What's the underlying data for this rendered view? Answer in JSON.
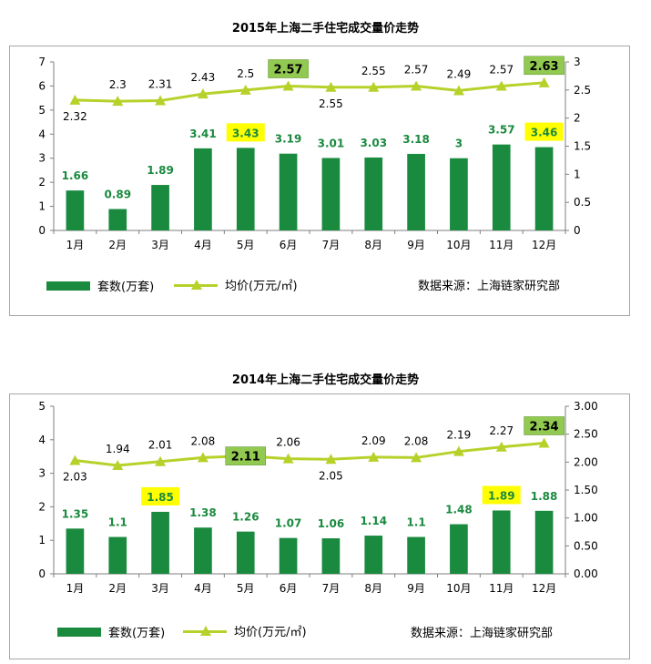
{
  "colors": {
    "bar": "#1a8a3f",
    "line": "#b7d12a",
    "bar_label": "#1a8a3f",
    "highlight_yellow": "#ffff00",
    "highlight_green": "#92c950",
    "axis": "#7f7f7f"
  },
  "chart_data": [
    {
      "type": "bar",
      "title": "2015年上海二手住宅成交量价走势",
      "categories": [
        "1月",
        "2月",
        "3月",
        "4月",
        "5月",
        "6月",
        "7月",
        "8月",
        "9月",
        "10月",
        "11月",
        "12月"
      ],
      "series": [
        {
          "name": "套数(万套)",
          "type": "bar",
          "axis": "left",
          "values": [
            1.66,
            0.89,
            1.89,
            3.41,
            3.43,
            3.19,
            3.01,
            3.03,
            3.18,
            3,
            3.57,
            3.46
          ]
        },
        {
          "name": "均价(万元/㎡)",
          "type": "line",
          "axis": "right",
          "values": [
            2.32,
            2.3,
            2.31,
            2.43,
            2.5,
            2.57,
            2.55,
            2.55,
            2.57,
            2.49,
            2.57,
            2.63
          ]
        }
      ],
      "bar_labels": [
        "1.66",
        "0.89",
        "1.89",
        "3.41",
        "3.43",
        "3.19",
        "3.01",
        "3.03",
        "3.18",
        "3",
        "3.57",
        "3.46"
      ],
      "line_labels": [
        "2.32",
        "2.3",
        "2.31",
        "2.43",
        "2.5",
        "2.57",
        "2.55",
        "2.55",
        "2.57",
        "2.49",
        "2.57",
        "2.63"
      ],
      "line_label_pos": [
        "below",
        "above",
        "above",
        "above",
        "above",
        "above",
        "below",
        "above",
        "above",
        "above",
        "above",
        "above"
      ],
      "highlight_bars": [
        4,
        11
      ],
      "highlight_line": [
        5,
        11
      ],
      "ylim_left": [
        0,
        7
      ],
      "yticks_left": [
        "0",
        "1",
        "2",
        "3",
        "4",
        "5",
        "6",
        "7"
      ],
      "ylim_right": [
        0,
        3
      ],
      "yticks_right": [
        "0",
        "0.5",
        "1",
        "1.5",
        "2",
        "2.5",
        "3"
      ],
      "legend_bar": "套数(万套)",
      "legend_line": "均价(万元/㎡)",
      "source": "数据来源：上海链家研究部"
    },
    {
      "type": "bar",
      "title": "2014年上海二手住宅成交量价走势",
      "categories": [
        "1月",
        "2月",
        "3月",
        "4月",
        "5月",
        "6月",
        "7月",
        "8月",
        "9月",
        "10月",
        "11月",
        "12月"
      ],
      "series": [
        {
          "name": "套数(万套)",
          "type": "bar",
          "axis": "left",
          "values": [
            1.35,
            1.1,
            1.85,
            1.38,
            1.26,
            1.07,
            1.06,
            1.14,
            1.1,
            1.48,
            1.89,
            1.88
          ]
        },
        {
          "name": "均价(万元/㎡)",
          "type": "line",
          "axis": "right",
          "values": [
            2.03,
            1.94,
            2.01,
            2.08,
            2.11,
            2.06,
            2.05,
            2.09,
            2.08,
            2.19,
            2.27,
            2.34
          ]
        }
      ],
      "bar_labels": [
        "1.35",
        "1.1",
        "1.85",
        "1.38",
        "1.26",
        "1.07",
        "1.06",
        "1.14",
        "1.1",
        "1.48",
        "1.89",
        "1.88"
      ],
      "line_labels": [
        "2.03",
        "1.94",
        "2.01",
        "2.08",
        "2.11",
        "2.06",
        "2.05",
        "2.09",
        "2.08",
        "2.19",
        "2.27",
        "2.34"
      ],
      "line_label_pos": [
        "below",
        "above",
        "above",
        "above",
        "onpoint",
        "above",
        "below",
        "above",
        "above",
        "above",
        "above",
        "above"
      ],
      "highlight_bars": [
        2,
        10
      ],
      "highlight_line": [
        4,
        11
      ],
      "ylim_left": [
        0,
        5
      ],
      "yticks_left": [
        "0",
        "1",
        "2",
        "3",
        "4",
        "5"
      ],
      "ylim_right": [
        0,
        3
      ],
      "yticks_right": [
        "0.00",
        "0.50",
        "1.00",
        "1.50",
        "2.00",
        "2.50",
        "3.00"
      ],
      "legend_bar": "套数(万套)",
      "legend_line": "均价(万元/㎡)",
      "source": "数据来源：上海链家研究部"
    }
  ]
}
